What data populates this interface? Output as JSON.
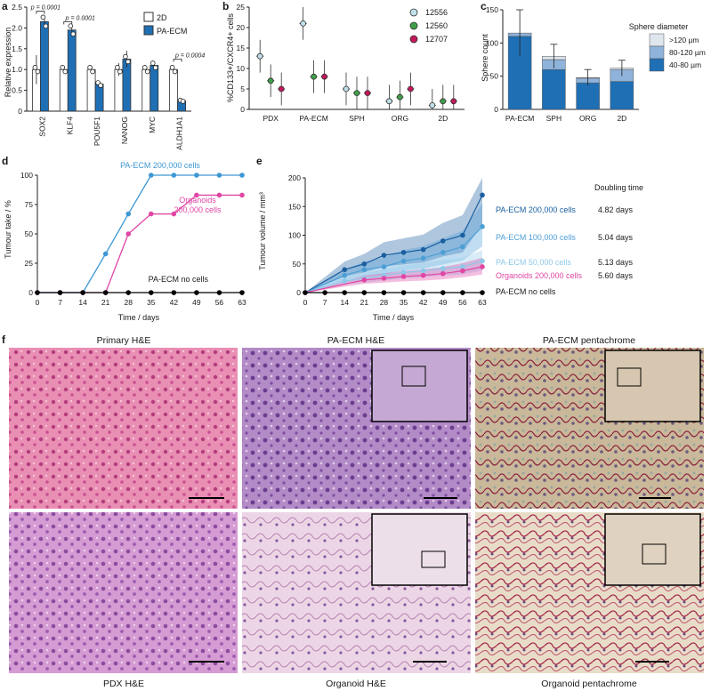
{
  "panels": {
    "a": {
      "letter": "a",
      "ylabel": "Relative expression",
      "ylim": [
        0,
        2.5
      ],
      "yticks": [
        "0",
        "0.5",
        "1.0",
        "1.5",
        "2.0",
        "2.5"
      ],
      "legend": [
        {
          "name": "2D",
          "color": "#ffffff"
        },
        {
          "name": "PA-ECM",
          "color": "#1f6fb5"
        }
      ],
      "categories": [
        "SOX2",
        "KLF4",
        "POU5F1",
        "NANOG",
        "MYC",
        "ALDH1A1"
      ],
      "series": [
        {
          "name": "2D",
          "values": [
            1.0,
            1.0,
            1.0,
            1.0,
            1.0,
            1.0
          ],
          "err": [
            0.35,
            0.03,
            0.08,
            0.15,
            0.05,
            0.1
          ]
        },
        {
          "name": "PA-ECM",
          "values": [
            2.15,
            1.95,
            0.65,
            1.25,
            1.1,
            0.25
          ],
          "err": [
            0.15,
            0.07,
            0.05,
            0.2,
            0.1,
            0.03
          ]
        }
      ],
      "pvalues": [
        "p = 0.0001",
        "p = 0.0001",
        "p = 0.0004"
      ]
    },
    "b": {
      "letter": "b",
      "ylabel": "%CD133+/CXCR4+ cells",
      "ylim": [
        0,
        25
      ],
      "yticks": [
        "0",
        "5",
        "10",
        "15",
        "20",
        "25"
      ],
      "categories": [
        "PDX",
        "PA-ECM",
        "SPH",
        "ORG",
        "2D"
      ],
      "series": [
        {
          "name": "12556",
          "color": "#bfe0ea",
          "values": [
            13,
            21,
            5,
            2,
            1
          ]
        },
        {
          "name": "12560",
          "color": "#3f9f4a",
          "values": [
            7,
            8,
            4,
            3,
            2
          ]
        },
        {
          "name": "12707",
          "color": "#c2185b",
          "values": [
            5,
            8,
            4,
            5,
            2
          ]
        }
      ]
    },
    "c": {
      "letter": "c",
      "ylabel": "Sphere count",
      "ylim": [
        0,
        150
      ],
      "yticks": [
        "0",
        "50",
        "100",
        "150"
      ],
      "categories": [
        "PA-ECM",
        "SPH",
        "ORG",
        "2D"
      ],
      "legend_title": "Sphere diameter",
      "series": [
        {
          "name": "40-80 µm",
          "color": "#1f6fb5",
          "values": [
            110,
            60,
            40,
            42
          ]
        },
        {
          "name": "80-120 µm",
          "color": "#8fb3da",
          "values": [
            5,
            15,
            7,
            18
          ]
        },
        {
          "name": ">120 µm",
          "color": "#e0e6ee",
          "values": [
            0,
            5,
            1,
            2
          ]
        }
      ],
      "err": [
        35,
        18,
        12,
        12
      ]
    },
    "d": {
      "letter": "d",
      "ylabel": "Tumour take / %",
      "xlabel": "Time / days",
      "ylim": [
        0,
        100
      ],
      "yticks": [
        "0",
        "25",
        "50",
        "75",
        "100"
      ],
      "xticks": [
        "0",
        "7",
        "14",
        "21",
        "28",
        "35",
        "42",
        "49",
        "56",
        "63"
      ],
      "series": [
        {
          "name": "PA-ECM 200,000 cells",
          "color": "#3d97d3",
          "x": [
            0,
            7,
            14,
            21,
            28,
            35,
            42,
            49,
            56,
            63
          ],
          "y": [
            0,
            0,
            0,
            33,
            67,
            100,
            100,
            100,
            100,
            100
          ]
        },
        {
          "name": "Organoids 200,000 cells",
          "color": "#e046a4",
          "x": [
            0,
            7,
            14,
            21,
            28,
            35,
            42,
            49,
            56,
            63
          ],
          "y": [
            0,
            0,
            0,
            0,
            50,
            67,
            67,
            83,
            83,
            83
          ]
        },
        {
          "name": "PA-ECM no cells",
          "color": "#000000",
          "x": [
            0,
            7,
            14,
            21,
            28,
            35,
            42,
            49,
            56,
            63
          ],
          "y": [
            0,
            0,
            0,
            0,
            0,
            0,
            0,
            0,
            0,
            0
          ]
        }
      ],
      "labels": [
        "PA-ECM 200,000 cells",
        "Organoids",
        "200,000 cells",
        "PA-ECM no cells"
      ]
    },
    "e": {
      "letter": "e",
      "ylabel": "Tumour volume / mm³",
      "xlabel": "Time / days",
      "ylim": [
        0,
        200
      ],
      "yticks": [
        "0",
        "50",
        "100",
        "150",
        "200"
      ],
      "xticks": [
        "0",
        "7",
        "14",
        "21",
        "28",
        "35",
        "42",
        "49",
        "56",
        "63"
      ],
      "doubling_header": "Doubling time",
      "series": [
        {
          "name": "PA-ECM 200,000 cells",
          "color": "#1a5fa0",
          "x": [
            0,
            14,
            21,
            28,
            35,
            42,
            49,
            56,
            63
          ],
          "y": [
            0,
            40,
            50,
            65,
            70,
            75,
            90,
            100,
            170
          ],
          "dt": "4.82 days"
        },
        {
          "name": "PA-ECM 100,000 cells",
          "color": "#4c9fd6",
          "x": [
            0,
            14,
            21,
            28,
            35,
            42,
            49,
            56,
            63
          ],
          "y": [
            0,
            30,
            40,
            45,
            55,
            60,
            70,
            80,
            115
          ],
          "dt": "5.04 days"
        },
        {
          "name": "PA-ECM 50,000 cells",
          "color": "#8ec8e8",
          "x": [
            0,
            14,
            21,
            28,
            35,
            42,
            49,
            56,
            63
          ],
          "y": [
            0,
            20,
            25,
            30,
            35,
            38,
            42,
            45,
            55
          ],
          "dt": "5.13 days"
        },
        {
          "name": "Organoids 200,000 cells",
          "color": "#e046a4",
          "x": [
            0,
            21,
            28,
            35,
            42,
            49,
            56,
            63
          ],
          "y": [
            0,
            22,
            25,
            28,
            30,
            33,
            38,
            45
          ],
          "dt": "5.60 days"
        },
        {
          "name": "PA-ECM no cells",
          "color": "#000000",
          "x": [
            0,
            7,
            14,
            21,
            28,
            35,
            42,
            49,
            56,
            63
          ],
          "y": [
            0,
            0,
            0,
            0,
            0,
            0,
            0,
            0,
            0,
            0
          ],
          "dt": ""
        }
      ]
    },
    "f": {
      "letter": "f",
      "titles": [
        "Primary H&E",
        "PA-ECM H&E",
        "PA-ECM pentachrome"
      ],
      "captions": [
        "PDX H&E",
        "Organoid H&E",
        "Organoid pentachrome"
      ]
    }
  }
}
